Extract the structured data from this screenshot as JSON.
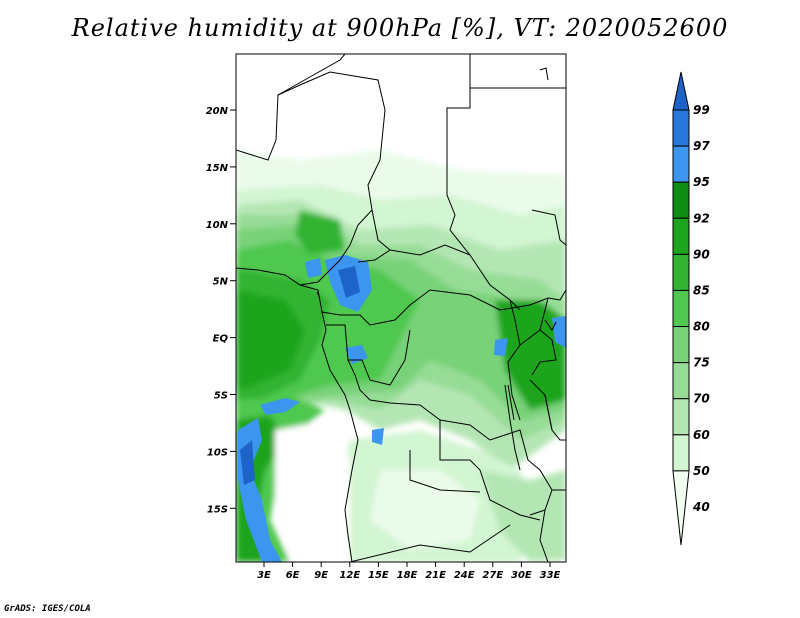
{
  "title": "Relative humidity at 900hPa [%], VT: 2020052600",
  "footer": "GrADS: IGES/COLA",
  "map": {
    "lat_labels": [
      "20N",
      "15N",
      "10N",
      "5N",
      "EQ",
      "5S",
      "10S",
      "15S"
    ],
    "lon_labels": [
      "3E",
      "6E",
      "9E",
      "12E",
      "15E",
      "18E",
      "21E",
      "24E",
      "27E",
      "30E",
      "33E"
    ]
  },
  "colorbar": {
    "labels": [
      "99",
      "97",
      "95",
      "92",
      "90",
      "85",
      "80",
      "75",
      "70",
      "60",
      "50",
      "40"
    ],
    "colors": [
      "#1e64c8",
      "#2878dc",
      "#3c96f0",
      "#0f8c14",
      "#1ea51e",
      "#32b432",
      "#50c850",
      "#78d278",
      "#96dc96",
      "#b4e6b4",
      "#d2f5d2",
      "#f0fff0"
    ]
  }
}
